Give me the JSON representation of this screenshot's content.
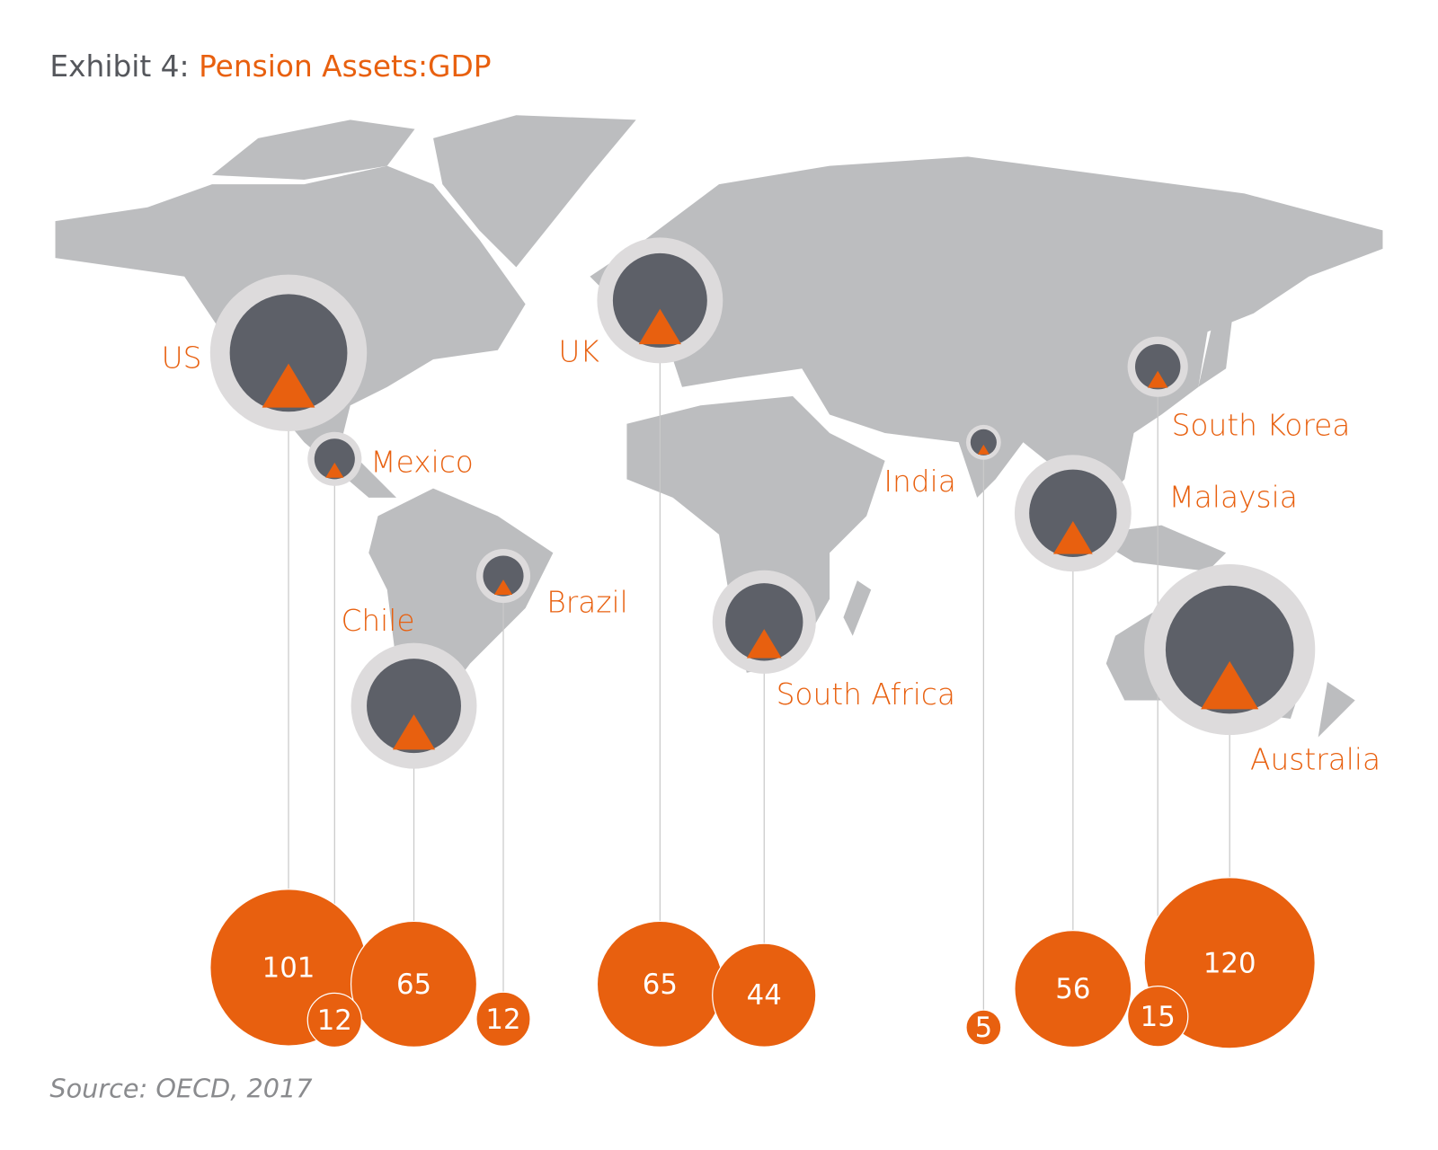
{
  "chart_data": {
    "type": "bubble-map",
    "title_label": "Exhibit 4:",
    "title": "Pension Assets:GDP",
    "source": "Source: OECD, 2017",
    "categories": [
      "US",
      "Mexico",
      "Chile",
      "Brazil",
      "UK",
      "South Africa",
      "India",
      "Malaysia",
      "South Korea",
      "Australia"
    ],
    "values": [
      101,
      12,
      65,
      12,
      65,
      44,
      5,
      56,
      15,
      120
    ],
    "color": "#e8600f"
  }
}
